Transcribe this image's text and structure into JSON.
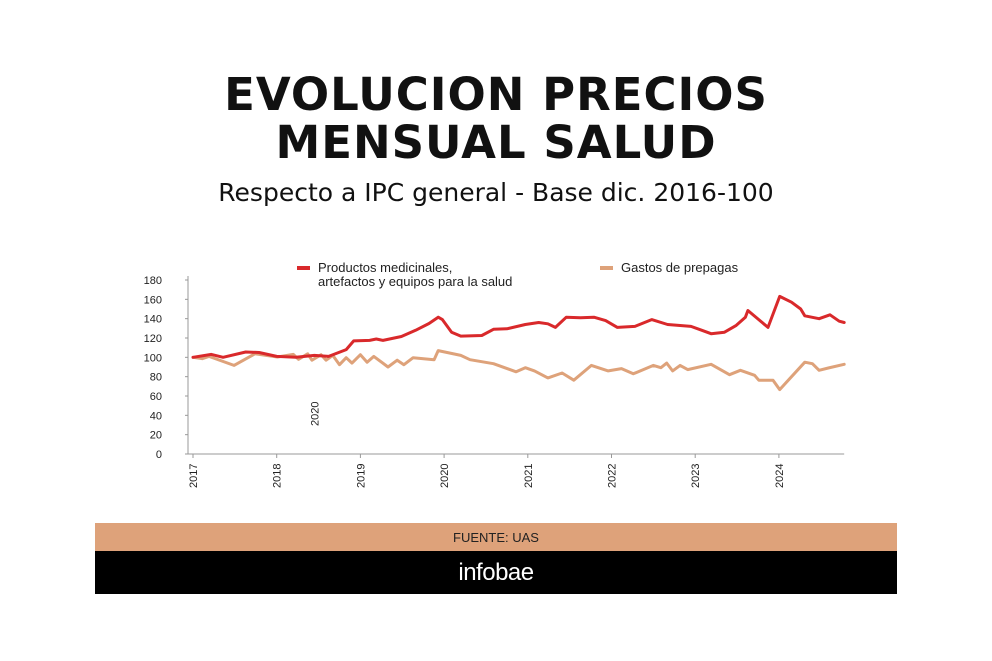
{
  "header": {
    "title_line1": "EVOLUCION PRECIOS",
    "title_line2": "MENSUAL SALUD",
    "subtitle": "Respecto a IPC general - Base dic. 2016-100"
  },
  "footer": {
    "source": "FUENTE: UAS",
    "brand": "infobae"
  },
  "chart_data": {
    "type": "line",
    "title": "EVOLUCION PRECIOS MENSUAL SALUD",
    "subtitle": "Respecto a IPC general - Base dic. 2016-100",
    "xlabel": "",
    "ylabel": "",
    "xlim": [
      2017,
      2024.78
    ],
    "ylim": [
      0,
      180
    ],
    "yticks": [
      0,
      20,
      40,
      60,
      80,
      100,
      120,
      140,
      160,
      180
    ],
    "xticks": [
      "2017",
      "2018",
      "2019",
      "2020",
      "2021",
      "2022",
      "2023",
      "2024"
    ],
    "annotation": "2020",
    "legend_position": "top",
    "grid": false,
    "series": [
      {
        "name": "Productos medicinales, artefactos y equipos para la salud",
        "legend_lines": [
          "Productos medicinales,",
          "artefactos y equipos para la salud"
        ],
        "color": "#d9292b",
        "x": [
          2017.0,
          2017.22,
          2017.36,
          2017.63,
          2017.79,
          2018.0,
          2018.23,
          2018.45,
          2018.62,
          2018.83,
          2018.92,
          2019.11,
          2019.19,
          2019.27,
          2019.49,
          2019.66,
          2019.82,
          2019.93,
          2019.98,
          2020.09,
          2020.2,
          2020.45,
          2020.59,
          2020.75,
          2020.97,
          2021.13,
          2021.24,
          2021.33,
          2021.46,
          2021.63,
          2021.79,
          2021.93,
          2022.07,
          2022.28,
          2022.48,
          2022.67,
          2022.95,
          2023.08,
          2023.19,
          2023.35,
          2023.49,
          2023.6,
          2023.63,
          2023.87,
          2024.01,
          2024.15,
          2024.26,
          2024.31,
          2024.48,
          2024.61,
          2024.72,
          2024.78
        ],
        "values": [
          100,
          103,
          100,
          105.5,
          105,
          101,
          100,
          102,
          101,
          108,
          117,
          117.5,
          119,
          117.5,
          121.6,
          128,
          135,
          141.5,
          139,
          126,
          122,
          122.6,
          129,
          129.5,
          134,
          136,
          134.7,
          131,
          141.5,
          141,
          141.5,
          138,
          131,
          132,
          139,
          134,
          132,
          128,
          124.4,
          126,
          133,
          141.5,
          148.4,
          131,
          163,
          157,
          150,
          143,
          140,
          144,
          137.4,
          136
        ]
      },
      {
        "name": "Gastos de prepagas",
        "legend_lines": [
          "Gastos de prepagas"
        ],
        "color": "#dea27a",
        "x": [
          2017.0,
          2017.11,
          2017.19,
          2017.49,
          2017.74,
          2018.01,
          2018.2,
          2018.26,
          2018.37,
          2018.42,
          2018.53,
          2018.59,
          2018.67,
          2018.75,
          2018.83,
          2018.9,
          2019.0,
          2019.08,
          2019.16,
          2019.33,
          2019.44,
          2019.52,
          2019.63,
          2019.88,
          2019.93,
          2020.2,
          2020.31,
          2020.59,
          2020.86,
          2020.97,
          2021.08,
          2021.24,
          2021.41,
          2021.55,
          2021.76,
          2021.96,
          2022.12,
          2022.26,
          2022.5,
          2022.59,
          2022.66,
          2022.73,
          2022.82,
          2022.91,
          2023.19,
          2023.41,
          2023.54,
          2023.71,
          2023.76,
          2023.93,
          2024.01,
          2024.31,
          2024.4,
          2024.48,
          2024.59,
          2024.78
        ],
        "values": [
          100,
          98.6,
          101,
          91.7,
          103.7,
          100.3,
          103,
          98,
          103.7,
          97,
          102.7,
          97,
          102,
          92.4,
          99.6,
          94,
          102.7,
          95,
          101,
          90,
          97,
          92.4,
          99.6,
          97.6,
          107,
          102,
          97.6,
          93.4,
          85,
          89.3,
          86,
          78.7,
          83.8,
          76.3,
          91.7,
          86,
          88.3,
          83,
          91.7,
          89.3,
          94,
          86,
          91.7,
          87.3,
          92.8,
          82,
          86.6,
          81.4,
          76.3,
          76.3,
          66.6,
          95,
          93.4,
          86.6,
          89,
          92.8
        ]
      }
    ]
  }
}
